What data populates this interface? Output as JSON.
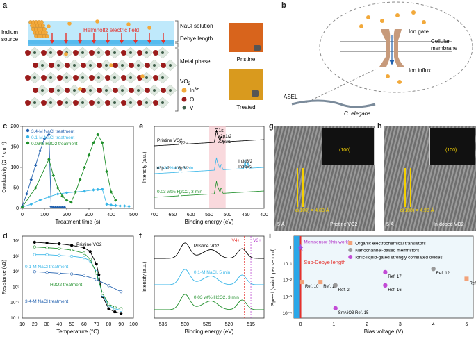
{
  "panel_labels": [
    "a",
    "b",
    "c",
    "d",
    "e",
    "f",
    "g",
    "h",
    "i"
  ],
  "a": {
    "indium_source": "Indium source",
    "helmholtz": "Helmholtz electric field",
    "nacl": "NaCl solution",
    "debye": "Debye length",
    "metal_phase": "Metal phase",
    "vo2": "VO2",
    "legend": [
      "In3+",
      "O",
      "V"
    ],
    "pristine": "Pristine",
    "treated": "Treated",
    "colors": {
      "accent": "#e5322d",
      "in": "#f2a93b",
      "o": "#9b1c1c",
      "v": "#3f5f4a",
      "solution": "#bde9fb"
    }
  },
  "b": {
    "ion_gate": "Ion gate",
    "membrane": "Cellular membrane",
    "influx": "Ion influx",
    "asel": "ASEL",
    "elegans": "C. elegans"
  },
  "chart_data": [
    {
      "panel": "c",
      "type": "line",
      "xlabel": "Treatment time (s)",
      "ylabel": "Conductivity (Ω⁻¹ cm⁻¹)",
      "xlim": [
        0,
        500
      ],
      "ylim": [
        0,
        200
      ],
      "xticks": [
        0,
        100,
        200,
        300,
        400,
        500
      ],
      "yticks": [
        0,
        50,
        100,
        150,
        200
      ],
      "series": [
        {
          "name": "3.4-M NaCl treatment",
          "color": "#1f5fae",
          "x": [
            0,
            20,
            40,
            60,
            80,
            100,
            120,
            130,
            140,
            150,
            160,
            170,
            180,
            190
          ],
          "y": [
            5,
            35,
            70,
            105,
            140,
            170,
            180,
            4,
            3,
            3,
            3,
            3,
            3,
            3
          ]
        },
        {
          "name": "0.1-M NaCl treatment",
          "color": "#38b6e8",
          "x": [
            0,
            40,
            80,
            120,
            160,
            200,
            240,
            280,
            320,
            340,
            360,
            380,
            400,
            420,
            440,
            460,
            480
          ],
          "y": [
            3,
            10,
            20,
            28,
            35,
            38,
            40,
            42,
            45,
            46,
            47,
            10,
            8,
            7,
            6,
            6,
            5
          ]
        },
        {
          "name": "0.03% H2O2 treatment",
          "color": "#1f8f2a",
          "x": [
            0,
            60,
            120,
            140,
            160,
            180,
            200,
            220,
            240,
            260,
            280,
            300,
            320,
            340,
            360,
            380,
            400,
            420
          ],
          "y": [
            3,
            50,
            120,
            80,
            50,
            30,
            20,
            15,
            40,
            70,
            100,
            130,
            160,
            180,
            160,
            90,
            40,
            20
          ]
        }
      ]
    },
    {
      "panel": "d",
      "type": "line",
      "xlabel": "Temperature (°C)",
      "ylabel": "Resistance (kΩ)",
      "xlim": [
        10,
        100
      ],
      "xticks": [
        10,
        20,
        30,
        40,
        50,
        60,
        70,
        80,
        90,
        100
      ],
      "yticks": [
        "10⁻²",
        "10⁻¹",
        "10⁰",
        "10¹",
        "10²",
        "10³"
      ],
      "ylog": [
        -2,
        3.3
      ],
      "series": [
        {
          "name": "Pristine VO2",
          "color": "#000000",
          "x": [
            20,
            30,
            40,
            50,
            60,
            65,
            70,
            72,
            75,
            80,
            85,
            90
          ],
          "y": [
            2.9,
            2.85,
            2.8,
            2.7,
            2.55,
            2.3,
            1.5,
            0.8,
            -0.6,
            -1.4,
            -1.6,
            -1.7
          ]
        },
        {
          "name": "0.1-M NaCl treatment",
          "color": "#38b6e8",
          "x": [
            20,
            30,
            40,
            50,
            60,
            65,
            70,
            75,
            80,
            85,
            90
          ],
          "y": [
            2.1,
            2.1,
            2.05,
            2.0,
            1.9,
            1.7,
            1.0,
            -0.5,
            -1.2,
            -1.4,
            -1.5
          ]
        },
        {
          "name": "H2O2 treatment",
          "color": "#1f8f2a",
          "x": [
            20,
            30,
            40,
            50,
            60,
            65,
            70,
            75,
            80,
            85,
            90
          ],
          "y": [
            2.6,
            2.55,
            2.5,
            2.4,
            2.2,
            1.8,
            0.9,
            -0.4,
            -1.1,
            -1.3,
            -1.4
          ]
        },
        {
          "name": "3.4-M NaCl treatment",
          "color": "#1f5fae",
          "x": [
            20,
            30,
            40,
            50,
            60,
            70,
            80,
            90
          ],
          "y": [
            1.0,
            0.95,
            0.9,
            0.85,
            0.75,
            0.5,
            0.1,
            -0.3
          ]
        }
      ],
      "annotations": [
        "Pristine VO2",
        "0.1-M NaCl treatment",
        "H2O2 treatment",
        "3.4-M NaCl treatment"
      ]
    },
    {
      "panel": "e",
      "type": "line",
      "xlabel": "Binding energy (eV)",
      "ylabel": "Intensity (a.u.)",
      "xticks": [
        700,
        650,
        600,
        550,
        500,
        450,
        400
      ],
      "xlim": [
        700,
        400
      ],
      "series": [
        {
          "name": "Pristine VO2",
          "color": "#000000"
        },
        {
          "name": "0.1-M NaCl, 5 min",
          "color": "#38b6e8"
        },
        {
          "name": "0.03 wt% H2O2, 3 min",
          "color": "#1f8f2a"
        }
      ],
      "peak_labels": [
        "O1s",
        "V2p1/2",
        "V2p3/2",
        "V2s",
        "In3p1/2",
        "In3p3/2",
        "In3d3/2",
        "In3d5/2"
      ]
    },
    {
      "panel": "f",
      "type": "line",
      "xlabel": "Binding energy (eV)",
      "ylabel": "Intensity (a.u.)",
      "xticks": [
        535,
        530,
        525,
        520,
        515
      ],
      "xlim": [
        537,
        512
      ],
      "series": [
        {
          "name": "Pristine VO2",
          "color": "#000000"
        },
        {
          "name": "0.1-M NaCl, 5 min",
          "color": "#38b6e8"
        },
        {
          "name": "0.03 wt% H2O2, 3 min",
          "color": "#1f8f2a"
        }
      ],
      "markers": [
        "V4+",
        "V3+"
      ]
    },
    {
      "panel": "i",
      "type": "scatter",
      "xlabel": "Bias voltage (V)",
      "ylabel": "Speed (switch per second)",
      "xlim": [
        -0.2,
        5.2
      ],
      "xticks": [
        0,
        1,
        2,
        3,
        4,
        5
      ],
      "yticks": [
        "10⁻⁴",
        "10⁻³",
        "10⁻²",
        "10⁻¹",
        "1"
      ],
      "ylog": [
        -4.3,
        0.7
      ],
      "legend": [
        "Organic electrochemical transistors",
        "Nanochannel-based memristors",
        "Ionic-liquid-gated strongly correlated oxides"
      ],
      "memsensor": "Memsensor (this work)",
      "sub_debye": "Sub-Debye length",
      "points": [
        {
          "label": "Memsensor",
          "x": 0.0,
          "y": 0.0,
          "kind": "this"
        },
        {
          "label": "Ref. 10",
          "x": 0.05,
          "y": -2.1,
          "kind": "oect"
        },
        {
          "label": "Ref. 11",
          "x": 0.6,
          "y": -2.1,
          "kind": "oect"
        },
        {
          "label": "Ref. 2",
          "x": 1.05,
          "y": -2.3,
          "kind": "nano"
        },
        {
          "label": "Ref. 17",
          "x": 2.55,
          "y": -1.5,
          "kind": "oxide"
        },
        {
          "label": "Ref. 16",
          "x": 2.55,
          "y": -2.3,
          "kind": "oxide"
        },
        {
          "label": "SmNiO3 Ref. 15",
          "x": 1.05,
          "y": -3.7,
          "kind": "oxide"
        },
        {
          "label": "Ref. 12",
          "x": 4.0,
          "y": -1.3,
          "kind": "nano"
        },
        {
          "label": "Ref. 9",
          "x": 5.0,
          "y": -1.9,
          "kind": "oect"
        }
      ]
    }
  ],
  "g": {
    "scale": "5 Å",
    "d": "d(100) = 4.83 Å",
    "fft": "(100)",
    "caption": "Pristine VO2"
  },
  "h": {
    "scale": "5 Å",
    "d": "d(100) = 4.98 Å",
    "fft": "(100)",
    "caption": "In-doped VO2"
  }
}
